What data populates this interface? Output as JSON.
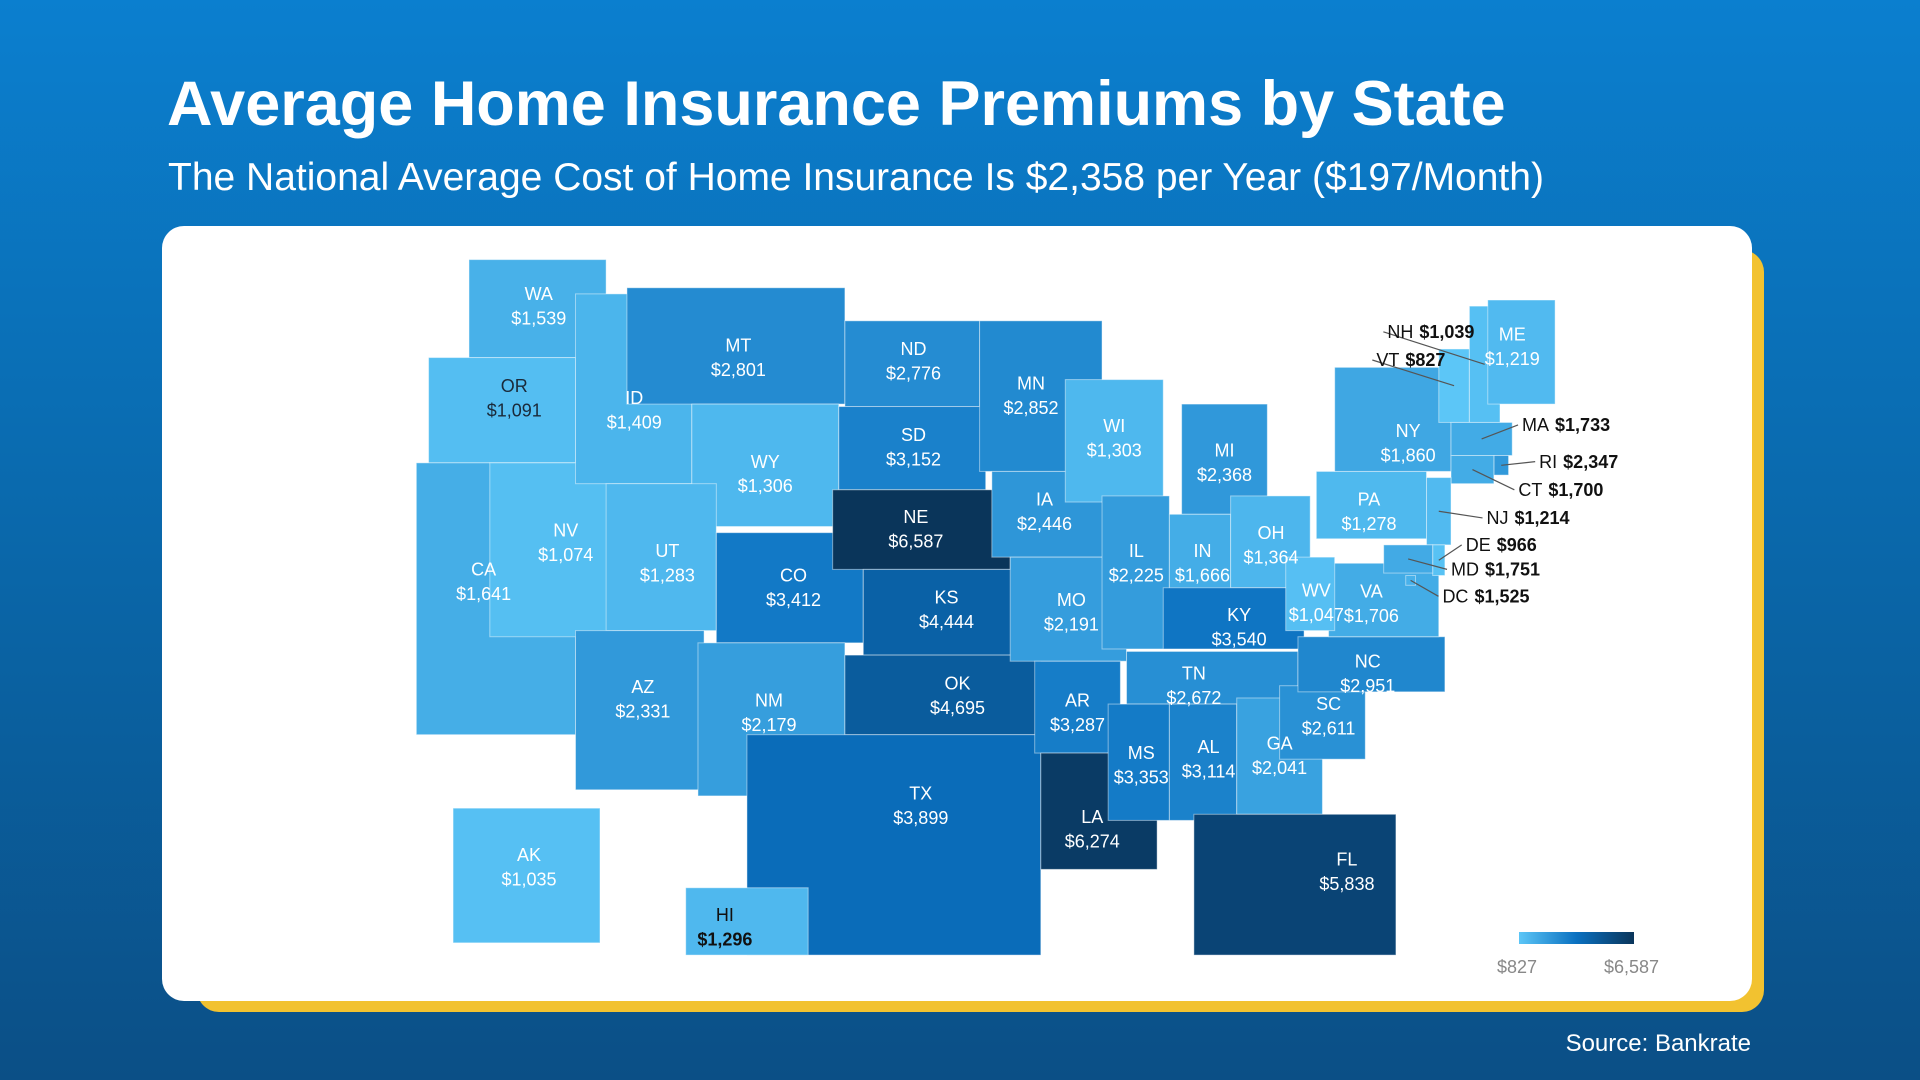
{
  "title": "Average Home Insurance Premiums by State",
  "subtitle": "The National Average Cost of Home Insurance Is $2,358 per Year ($197/Month)",
  "source": "Source: Bankrate",
  "legend": {
    "min_label": "$827",
    "max_label": "$6,587",
    "min": 827,
    "max": 6587,
    "colors": [
      "#5cc6f7",
      "#0a70c0",
      "#0a355a"
    ]
  },
  "states": [
    {
      "code": "WA",
      "value": 1539,
      "label": "$1,539"
    },
    {
      "code": "OR",
      "value": 1091,
      "label": "$1,091"
    },
    {
      "code": "CA",
      "value": 1641,
      "label": "$1,641"
    },
    {
      "code": "NV",
      "value": 1074,
      "label": "$1,074"
    },
    {
      "code": "ID",
      "value": 1409,
      "label": "$1,409"
    },
    {
      "code": "MT",
      "value": 2801,
      "label": "$2,801"
    },
    {
      "code": "WY",
      "value": 1306,
      "label": "$1,306"
    },
    {
      "code": "UT",
      "value": 1283,
      "label": "$1,283"
    },
    {
      "code": "AZ",
      "value": 2331,
      "label": "$2,331"
    },
    {
      "code": "CO",
      "value": 3412,
      "label": "$3,412"
    },
    {
      "code": "NM",
      "value": 2179,
      "label": "$2,179"
    },
    {
      "code": "ND",
      "value": 2776,
      "label": "$2,776"
    },
    {
      "code": "SD",
      "value": 3152,
      "label": "$3,152"
    },
    {
      "code": "NE",
      "value": 6587,
      "label": "$6,587"
    },
    {
      "code": "KS",
      "value": 4444,
      "label": "$4,444"
    },
    {
      "code": "OK",
      "value": 4695,
      "label": "$4,695"
    },
    {
      "code": "TX",
      "value": 3899,
      "label": "$3,899"
    },
    {
      "code": "MN",
      "value": 2852,
      "label": "$2,852"
    },
    {
      "code": "IA",
      "value": 2446,
      "label": "$2,446"
    },
    {
      "code": "MO",
      "value": 2191,
      "label": "$2,191"
    },
    {
      "code": "AR",
      "value": 3287,
      "label": "$3,287"
    },
    {
      "code": "LA",
      "value": 6274,
      "label": "$6,274"
    },
    {
      "code": "WI",
      "value": 1303,
      "label": "$1,303"
    },
    {
      "code": "IL",
      "value": 2225,
      "label": "$2,225"
    },
    {
      "code": "MI",
      "value": 2368,
      "label": "$2,368"
    },
    {
      "code": "IN",
      "value": 1666,
      "label": "$1,666"
    },
    {
      "code": "OH",
      "value": 1364,
      "label": "$1,364"
    },
    {
      "code": "KY",
      "value": 3540,
      "label": "$3,540"
    },
    {
      "code": "TN",
      "value": 2672,
      "label": "$2,672"
    },
    {
      "code": "MS",
      "value": 3353,
      "label": "$3,353"
    },
    {
      "code": "AL",
      "value": 3114,
      "label": "$3,114"
    },
    {
      "code": "GA",
      "value": 2041,
      "label": "$2,041"
    },
    {
      "code": "FL",
      "value": 5838,
      "label": "$5,838"
    },
    {
      "code": "SC",
      "value": 2611,
      "label": "$2,611"
    },
    {
      "code": "NC",
      "value": 2951,
      "label": "$2,951"
    },
    {
      "code": "VA",
      "value": 1706,
      "label": "$1,706"
    },
    {
      "code": "WV",
      "value": 1047,
      "label": "$1,047"
    },
    {
      "code": "PA",
      "value": 1278,
      "label": "$1,278"
    },
    {
      "code": "NY",
      "value": 1860,
      "label": "$1,860"
    },
    {
      "code": "VT",
      "value": 827,
      "label": "$827"
    },
    {
      "code": "NH",
      "value": 1039,
      "label": "$1,039"
    },
    {
      "code": "ME",
      "value": 1219,
      "label": "$1,219"
    },
    {
      "code": "MA",
      "value": 1733,
      "label": "$1,733"
    },
    {
      "code": "RI",
      "value": 2347,
      "label": "$2,347"
    },
    {
      "code": "CT",
      "value": 1700,
      "label": "$1,700"
    },
    {
      "code": "NJ",
      "value": 1214,
      "label": "$1,214"
    },
    {
      "code": "DE",
      "value": 966,
      "label": "$966"
    },
    {
      "code": "MD",
      "value": 1751,
      "label": "$1,751"
    },
    {
      "code": "DC",
      "value": 1525,
      "label": "$1,525"
    },
    {
      "code": "AK",
      "value": 1035,
      "label": "$1,035"
    },
    {
      "code": "HI",
      "value": 1296,
      "label": "$1,296"
    }
  ]
}
